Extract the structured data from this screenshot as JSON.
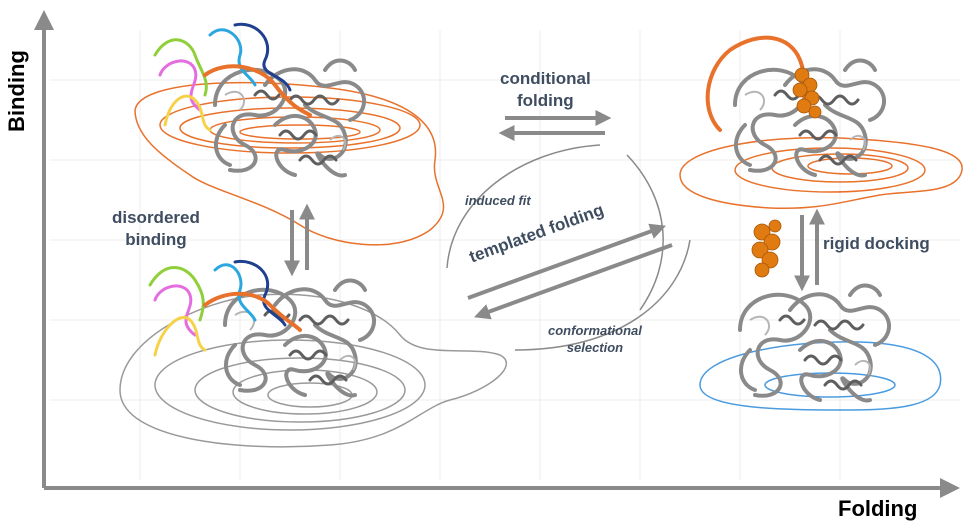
{
  "axes": {
    "x_label": "Folding",
    "y_label": "Binding"
  },
  "mechanisms": {
    "disordered_binding": "disordered\nbinding",
    "conditional_folding": "conditional\nfolding",
    "rigid_docking": "rigid docking",
    "induced_fit": "induced fit",
    "templated_folding": "templated folding",
    "conformational_selection": "conformational\nselection"
  },
  "colors": {
    "unfolded_bound_contours": "#e8722c",
    "folded_bound_contours": "#e8722c",
    "unbound_disordered_contours": "#9a9a9a",
    "unbound_folded_contours": "#4a9be0",
    "arrows": "#8a8a8a",
    "protein": "#7a7a7a",
    "ligand": "#e07b12",
    "peptides": [
      "#8fcf3a",
      "#e46ee0",
      "#f6d24a",
      "#2aa6e0",
      "#1f3f8f",
      "#e8722c"
    ]
  },
  "icons": [
    "protein-structure-icon",
    "ligand-sphere-icon",
    "disordered-peptide-icon"
  ]
}
